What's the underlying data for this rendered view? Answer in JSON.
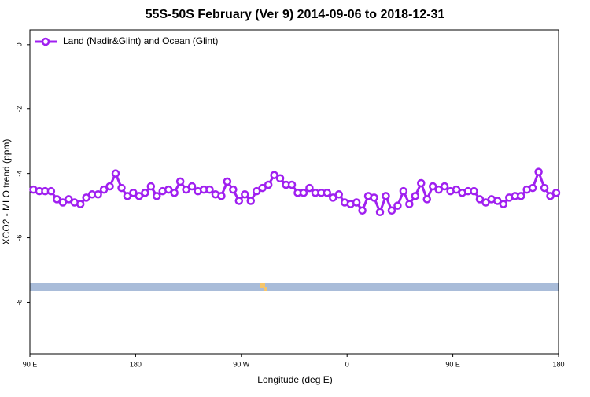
{
  "chart_data": {
    "type": "line",
    "title": "55S-50S February (Ver 9)   2014-09-06 to 2018-12-31",
    "x_label": "Longitude (deg E)",
    "y_label": "XCO2 - MLO trend (ppm)",
    "legend_position": "top-left",
    "xlim": [
      90,
      540
    ],
    "xticks": [
      {
        "value": 90,
        "label": "90 E"
      },
      180,
      {
        "value": 270,
        "label": "90 W"
      },
      {
        "value": 360,
        "label": "0"
      },
      {
        "value": 450,
        "label": "90 E"
      },
      {
        "value": 540,
        "label": "180"
      }
    ],
    "ylim": [
      -9.6,
      0.46
    ],
    "yticks": [
      0,
      -2,
      -4,
      -6,
      -8
    ],
    "x": [
      93,
      98,
      103,
      108,
      113,
      118,
      123,
      128,
      133,
      138,
      143,
      148,
      153,
      158,
      163,
      168,
      173,
      178,
      183,
      188,
      193,
      198,
      203,
      208,
      213,
      218,
      223,
      228,
      233,
      238,
      243,
      248,
      253,
      258,
      263,
      268,
      273,
      278,
      283,
      288,
      293,
      298,
      303,
      308,
      313,
      318,
      323,
      328,
      333,
      338,
      343,
      348,
      353,
      358,
      363,
      368,
      373,
      378,
      383,
      388,
      393,
      398,
      403,
      408,
      413,
      418,
      423,
      428,
      433,
      438,
      443,
      448,
      453,
      458,
      463,
      468,
      473,
      478,
      483,
      488,
      493,
      498,
      503,
      508,
      513,
      518,
      523,
      528,
      533,
      538
    ],
    "series": [
      {
        "name": "Land (Nadir&Glint) and Ocean (Glint)",
        "color": "#a020f0",
        "values": [
          -4.5,
          -4.55,
          -4.55,
          -4.55,
          -4.8,
          -4.9,
          -4.8,
          -4.9,
          -4.95,
          -4.75,
          -4.65,
          -4.65,
          -4.5,
          -4.4,
          -4.0,
          -4.45,
          -4.7,
          -4.6,
          -4.7,
          -4.6,
          -4.4,
          -4.7,
          -4.55,
          -4.5,
          -4.6,
          -4.25,
          -4.5,
          -4.4,
          -4.55,
          -4.5,
          -4.5,
          -4.65,
          -4.7,
          -4.25,
          -4.5,
          -4.85,
          -4.65,
          -4.85,
          -4.55,
          -4.45,
          -4.35,
          -4.05,
          -4.15,
          -4.35,
          -4.35,
          -4.6,
          -4.6,
          -4.45,
          -4.6,
          -4.6,
          -4.6,
          -4.75,
          -4.65,
          -4.9,
          -4.95,
          -4.9,
          -5.15,
          -4.7,
          -4.75,
          -5.2,
          -4.7,
          -5.15,
          -5.0,
          -4.55,
          -4.95,
          -4.7,
          -4.3,
          -4.8,
          -4.4,
          -4.5,
          -4.4,
          -4.55,
          -4.5,
          -4.6,
          -4.55,
          -4.55,
          -4.8,
          -4.9,
          -4.8,
          -4.85,
          -4.95,
          -4.75,
          -4.7,
          -4.7,
          -4.5,
          -4.45,
          -3.95,
          -4.45,
          -4.7,
          -4.6
        ]
      }
    ]
  }
}
